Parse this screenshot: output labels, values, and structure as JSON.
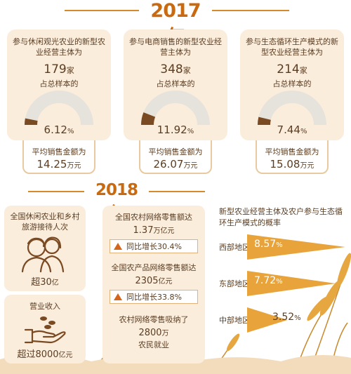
{
  "year_2017": "2017年",
  "cards": [
    {
      "desc": "参与休闲观光农业的新型农业经营主体为",
      "count": "179",
      "count_unit": "家",
      "share_label": "占总样本的",
      "percent": "6.12",
      "percent_unit": "%",
      "share_value": 6.12,
      "avg_label": "平均销售金额为",
      "avg_value": "14.25",
      "avg_unit": "万元"
    },
    {
      "desc": "参与电商销售的新型农业经营主体为",
      "count": "348",
      "count_unit": "家",
      "share_label": "占总样本的",
      "percent": "11.92",
      "percent_unit": "%",
      "share_value": 11.92,
      "avg_label": "平均销售金额为",
      "avg_value": "26.07",
      "avg_unit": "万元"
    },
    {
      "desc": "参与生态循环生产模式的新型农业经营主体为",
      "count": "214",
      "count_unit": "家",
      "share_label": "占总样本的",
      "percent": "7.44",
      "percent_unit": "%",
      "share_value": 7.44,
      "avg_label": "平均销售金额为",
      "avg_value": "15.08",
      "avg_unit": "万元"
    }
  ],
  "year_2018": "2018年",
  "leisure": {
    "desc": "全国休闲农业和乡村旅游接待人次",
    "prefix": "超",
    "value": "30",
    "unit": "亿"
  },
  "revenue": {
    "desc": "营业收入",
    "prefix": "超过",
    "value": "8000",
    "unit": "亿元"
  },
  "online": {
    "retail_label": "全国农村网络零售额达",
    "retail_value": "1.37",
    "retail_unit": "万亿元",
    "retail_growth": "同比增长30.4%",
    "agri_label": "全国农产品网络零售额达",
    "agri_value": "2305",
    "agri_unit": "亿元",
    "agri_growth": "同比增长33.8%",
    "employ_label": "农村网络零售吸纳了",
    "employ_value": "2800",
    "employ_unit": "万",
    "employ_suffix": "农民就业"
  },
  "regions": {
    "title": "新型农业经营主体及农户参与生态循环生产模式的概率",
    "items": [
      {
        "name": "西部地区",
        "value": "8.57",
        "unit": "%",
        "share": 8.57
      },
      {
        "name": "东部地区",
        "value": "7.72",
        "unit": "%",
        "share": 7.72
      },
      {
        "name": "中部地区",
        "value": "3.52",
        "unit": "%",
        "share": 3.52
      }
    ]
  },
  "colors": {
    "accent": "#c96a10",
    "panel": "#fbeddc",
    "gauge_bg": "#e6e2dc",
    "gauge_fill": "#7a4a23",
    "triangle": "#e8a43a"
  }
}
